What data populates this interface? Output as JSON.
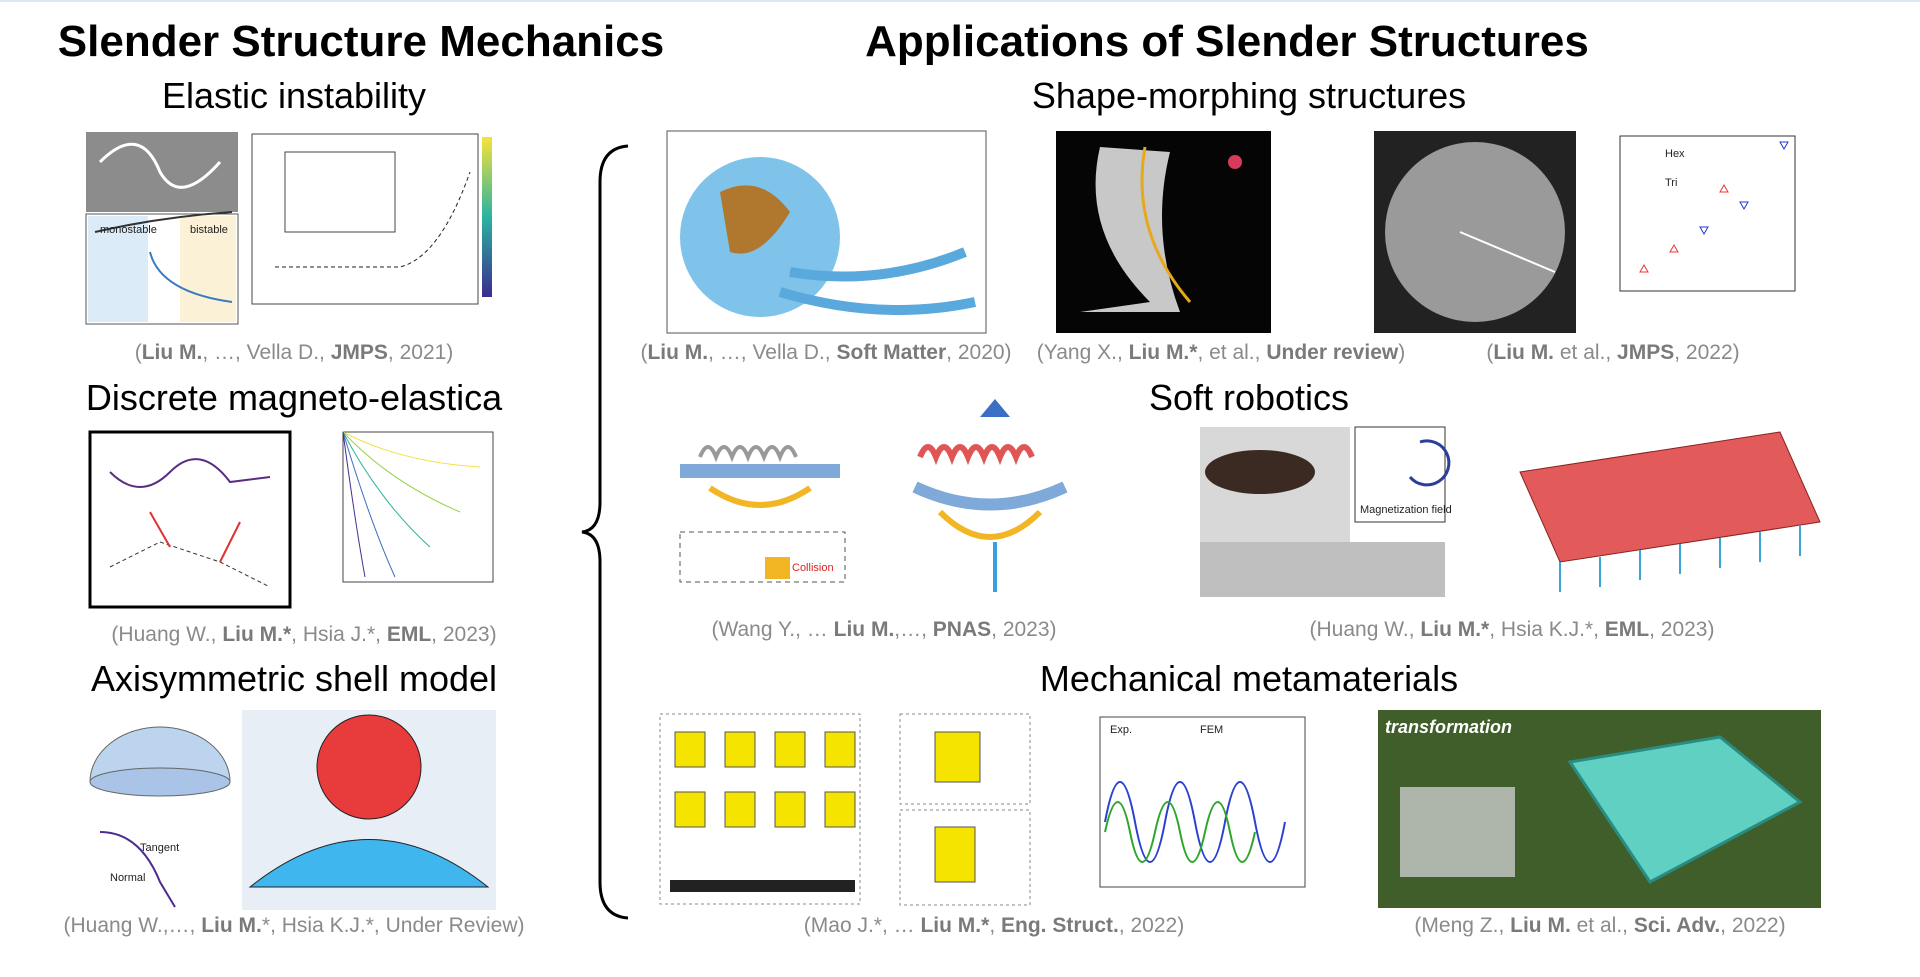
{
  "left": {
    "title": "Slender Structure Mechanics",
    "sections": [
      {
        "heading": "Elastic instability",
        "labels": [
          "monostable",
          "bistable"
        ],
        "citation": [
          {
            "text": "(",
            "bold": false
          },
          {
            "text": "Liu M.",
            "bold": true
          },
          {
            "text": ", …, Vella D., ",
            "bold": false
          },
          {
            "text": "JMPS",
            "bold": true
          },
          {
            "text": ", 2021)",
            "bold": false
          }
        ]
      },
      {
        "heading": "Discrete magneto-elastica",
        "labels": [],
        "citation": [
          {
            "text": "(Huang W., ",
            "bold": false
          },
          {
            "text": "Liu M.*",
            "bold": true
          },
          {
            "text": ", Hsia J.*, ",
            "bold": false
          },
          {
            "text": "EML",
            "bold": true
          },
          {
            "text": ", 2023)",
            "bold": false
          }
        ]
      },
      {
        "heading": "Axisymmetric shell model",
        "labels": [
          "Tangent",
          "Normal"
        ],
        "citation": [
          {
            "text": "(Huang W.,…, ",
            "bold": false
          },
          {
            "text": "Liu M.",
            "bold": true
          },
          {
            "text": "*, Hsia K.J.*, Under Review)",
            "bold": false
          }
        ]
      }
    ]
  },
  "right": {
    "title": "Applications of Slender Structures",
    "sections": [
      {
        "heading": "Shape-morphing structures",
        "labels": [
          "Hex",
          "Tri"
        ],
        "citations": [
          [
            {
              "text": "(",
              "bold": false
            },
            {
              "text": "Liu M.",
              "bold": true
            },
            {
              "text": ", …, Vella D., ",
              "bold": false
            },
            {
              "text": "Soft Matter",
              "bold": true
            },
            {
              "text": ", 2020)",
              "bold": false
            }
          ],
          [
            {
              "text": "(Yang X., ",
              "bold": false
            },
            {
              "text": "Liu M.*",
              "bold": true
            },
            {
              "text": ", et al., ",
              "bold": false
            },
            {
              "text": "Under review",
              "bold": true
            },
            {
              "text": ")",
              "bold": false
            }
          ],
          [
            {
              "text": "(",
              "bold": false
            },
            {
              "text": "Liu M.",
              "bold": true
            },
            {
              "text": " et al., ",
              "bold": false
            },
            {
              "text": "JMPS",
              "bold": true
            },
            {
              "text": ", 2022)",
              "bold": false
            }
          ]
        ]
      },
      {
        "heading": "Soft robotics",
        "labels": [
          "Collision",
          "Magnetization field"
        ],
        "citations": [
          [
            {
              "text": "(Wang Y., … ",
              "bold": false
            },
            {
              "text": "Liu M.",
              "bold": true
            },
            {
              "text": ",…, ",
              "bold": false
            },
            {
              "text": "PNAS",
              "bold": true
            },
            {
              "text": ", 2023)",
              "bold": false
            }
          ],
          [
            {
              "text": "(Huang W., ",
              "bold": false
            },
            {
              "text": "Liu M.*",
              "bold": true
            },
            {
              "text": ", Hsia K.J.*, ",
              "bold": false
            },
            {
              "text": "EML",
              "bold": true
            },
            {
              "text": ", 2023)",
              "bold": false
            }
          ]
        ]
      },
      {
        "heading": "Mechanical metamaterials",
        "labels": [
          "Exp.",
          "FEM",
          "transformation"
        ],
        "citations": [
          [
            {
              "text": "(Mao J.*, … ",
              "bold": false
            },
            {
              "text": "Liu M.*",
              "bold": true
            },
            {
              "text": ", ",
              "bold": false
            },
            {
              "text": "Eng. Struct.",
              "bold": true
            },
            {
              "text": ", 2022)",
              "bold": false
            }
          ],
          [
            {
              "text": "(Meng Z., ",
              "bold": false
            },
            {
              "text": "Liu M.",
              "bold": true
            },
            {
              "text": " et al., ",
              "bold": false
            },
            {
              "text": "Sci. Adv.",
              "bold": true
            },
            {
              "text": ", 2022)",
              "bold": false
            }
          ]
        ]
      }
    ]
  }
}
